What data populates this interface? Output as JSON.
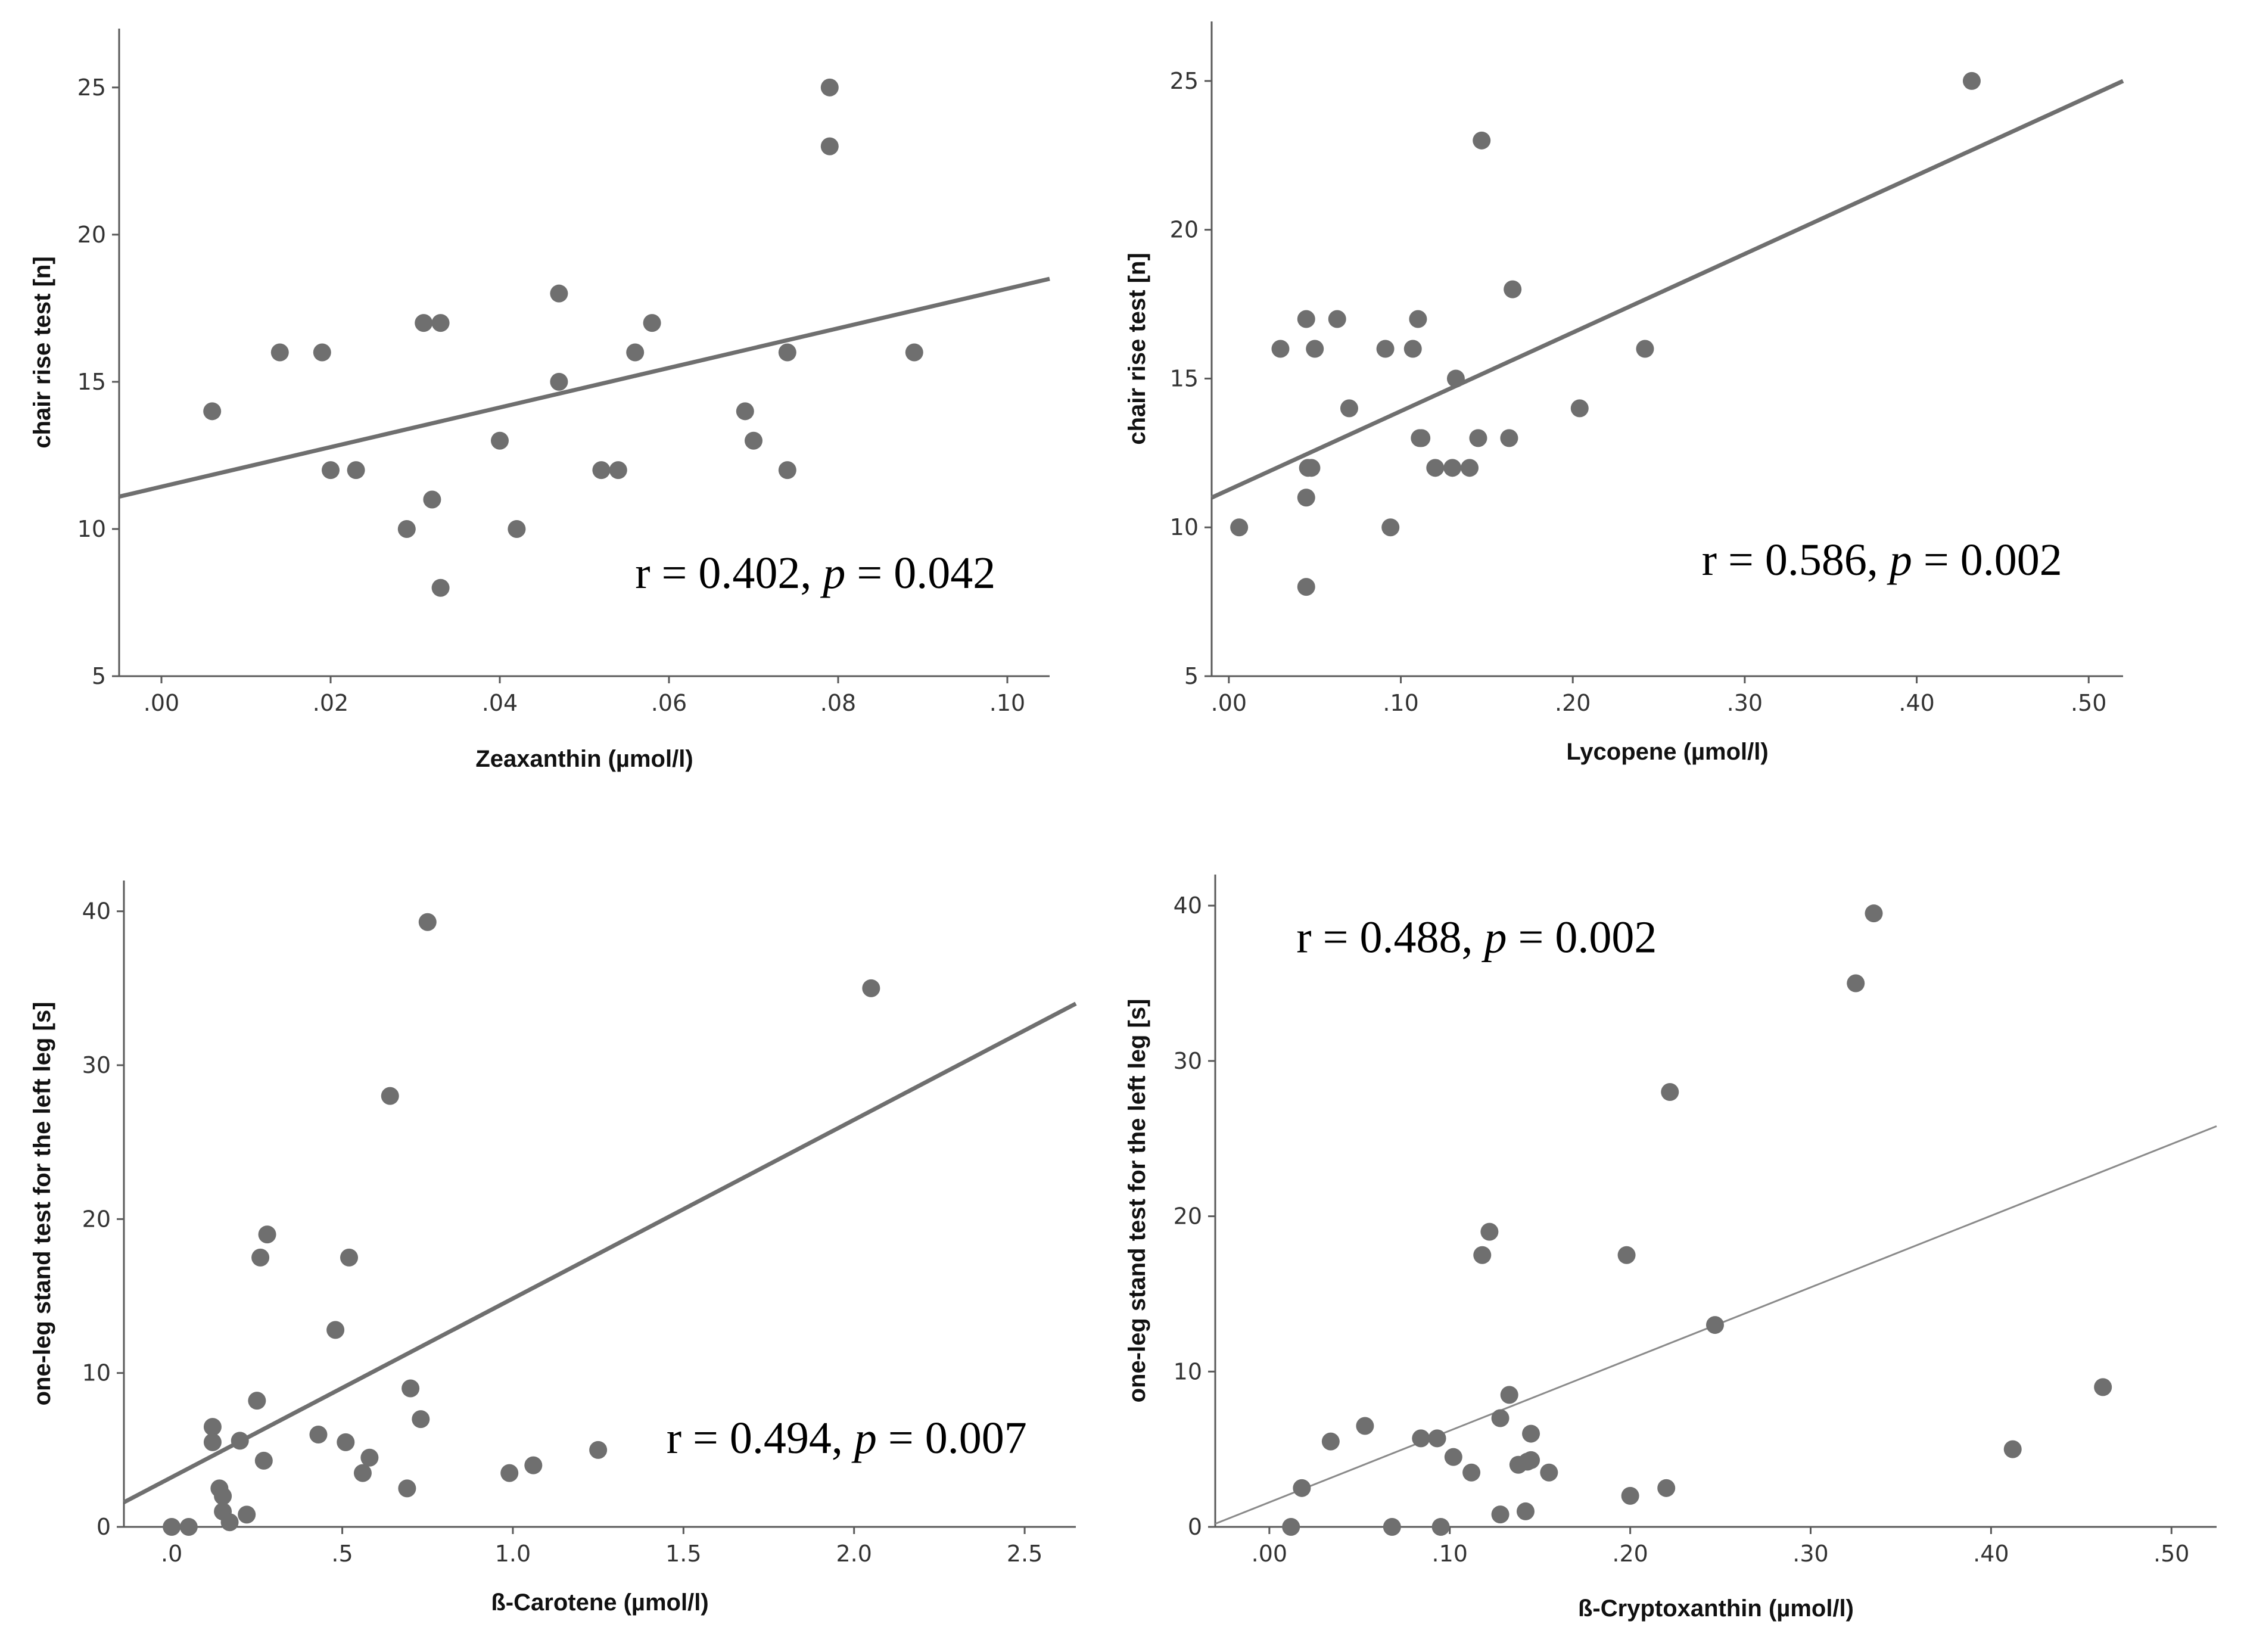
{
  "chart_data": [
    {
      "type": "scatter",
      "xlabel": "Zeaxanthin (µmol/l)",
      "ylabel": "chair rise test [n]",
      "xlim": [
        -0.005,
        0.105
      ],
      "ylim": [
        5,
        27
      ],
      "xticks": [
        0,
        0.02,
        0.04,
        0.06,
        0.08,
        0.1
      ],
      "xtick_labels": [
        ".00",
        ".02",
        ".04",
        ".06",
        ".08",
        ".10"
      ],
      "yticks": [
        5,
        10,
        15,
        20,
        25
      ],
      "ytick_labels": [
        "5",
        "10",
        "15",
        "20",
        "25"
      ],
      "annotation": {
        "prefix": "r = 0.402, ",
        "p_symbol": "p",
        "suffix": " = 0.042",
        "anchor": [
          0.056,
          8.0
        ]
      },
      "fit_line": {
        "x": [
          -0.005,
          0.105
        ],
        "y": [
          11.1,
          18.5
        ],
        "weight": "thick"
      },
      "points": {
        "x": [
          0.006,
          0.014,
          0.019,
          0.02,
          0.023,
          0.029,
          0.031,
          0.032,
          0.033,
          0.033,
          0.04,
          0.042,
          0.047,
          0.047,
          0.052,
          0.054,
          0.056,
          0.058,
          0.069,
          0.07,
          0.074,
          0.074,
          0.079,
          0.079,
          0.089
        ],
        "y": [
          14,
          16,
          16,
          12,
          12,
          10,
          17,
          11,
          17,
          8,
          13,
          10,
          18,
          15,
          12,
          12,
          16,
          17,
          14,
          13,
          16,
          12,
          25,
          23,
          16
        ]
      }
    },
    {
      "type": "scatter",
      "xlabel": "Lycopene (µmol/l)",
      "ylabel": "chair rise test [n]",
      "xlim": [
        -0.01,
        0.52
      ],
      "ylim": [
        5,
        27
      ],
      "xticks": [
        0,
        0.1,
        0.2,
        0.3,
        0.4,
        0.5
      ],
      "xtick_labels": [
        ".00",
        ".10",
        ".20",
        ".30",
        ".40",
        ".50"
      ],
      "yticks": [
        5,
        10,
        15,
        20,
        25
      ],
      "ytick_labels": [
        "5",
        "10",
        "15",
        "20",
        "25"
      ],
      "annotation": {
        "prefix": "r = 0.586, ",
        "p_symbol": "p",
        "suffix": " = 0.002",
        "anchor": [
          0.275,
          8.4
        ]
      },
      "fit_line": {
        "x": [
          -0.01,
          0.52
        ],
        "y": [
          11.0,
          25.0
        ],
        "weight": "thick"
      },
      "points": {
        "x": [
          0.006,
          0.03,
          0.045,
          0.045,
          0.045,
          0.046,
          0.048,
          0.05,
          0.063,
          0.07,
          0.091,
          0.094,
          0.107,
          0.11,
          0.111,
          0.112,
          0.12,
          0.13,
          0.132,
          0.14,
          0.145,
          0.147,
          0.163,
          0.165,
          0.204,
          0.242,
          0.432
        ],
        "y": [
          10,
          16,
          17,
          11,
          8,
          12,
          12,
          16,
          17,
          14,
          16,
          10,
          16,
          17,
          13,
          13,
          12,
          12,
          15,
          12,
          13,
          23,
          13,
          18,
          14,
          16,
          25
        ]
      }
    },
    {
      "type": "scatter",
      "xlabel": "ß-Carotene (µmol/l)",
      "ylabel": "one-leg stand test for the left leg [s]",
      "xlim": [
        -0.14,
        2.65
      ],
      "ylim": [
        0,
        42
      ],
      "xticks": [
        0,
        0.5,
        1.0,
        1.5,
        2.0,
        2.5
      ],
      "xtick_labels": [
        ".0",
        ".5",
        "1.0",
        "1.5",
        "2.0",
        "2.5"
      ],
      "yticks": [
        0,
        10,
        20,
        30,
        40
      ],
      "ytick_labels": [
        "0",
        "10",
        "20",
        "30",
        "40"
      ],
      "annotation": {
        "prefix": "r = 0.494, ",
        "p_symbol": "p",
        "suffix": " = 0.007",
        "anchor": [
          1.45,
          4.8
        ]
      },
      "fit_line": {
        "x": [
          -0.14,
          2.65
        ],
        "y": [
          1.6,
          34.0
        ],
        "weight": "thick"
      },
      "points": {
        "x": [
          0.0,
          0.05,
          0.12,
          0.12,
          0.14,
          0.15,
          0.15,
          0.17,
          0.2,
          0.22,
          0.25,
          0.26,
          0.27,
          0.28,
          0.43,
          0.48,
          0.51,
          0.52,
          0.56,
          0.58,
          0.64,
          0.69,
          0.7,
          0.73,
          0.75,
          0.99,
          1.06,
          1.25,
          2.05
        ],
        "y": [
          0,
          0,
          6.5,
          5.5,
          2.5,
          2.0,
          1.0,
          0.3,
          5.6,
          0.8,
          8.2,
          17.5,
          4.3,
          19.0,
          6.0,
          12.8,
          5.5,
          17.5,
          3.5,
          4.5,
          28.0,
          2.5,
          9.0,
          7.0,
          39.3,
          3.5,
          4.0,
          5.0,
          35.0
        ]
      }
    },
    {
      "type": "scatter",
      "xlabel": "ß-Cryptoxanthin (µmol/l)",
      "ylabel": "one-leg stand test for the left leg [s]",
      "xlim": [
        -0.03,
        0.525
      ],
      "ylim": [
        0,
        42
      ],
      "xticks": [
        0,
        0.1,
        0.2,
        0.3,
        0.4,
        0.5
      ],
      "xtick_labels": [
        ".00",
        ".10",
        ".20",
        ".30",
        ".40",
        ".50"
      ],
      "yticks": [
        0,
        10,
        20,
        30,
        40
      ],
      "ytick_labels": [
        "0",
        "10",
        "20",
        "30",
        "40"
      ],
      "annotation": {
        "prefix": "r = 0.488, ",
        "p_symbol": "p",
        "suffix": " = 0.002",
        "anchor": [
          0.015,
          37.0
        ]
      },
      "fit_line": {
        "x": [
          -0.03,
          0.525
        ],
        "y": [
          0.2,
          25.8
        ],
        "weight": "thin"
      },
      "points": {
        "x": [
          0.012,
          0.018,
          0.034,
          0.053,
          0.068,
          0.084,
          0.093,
          0.095,
          0.102,
          0.112,
          0.118,
          0.122,
          0.128,
          0.128,
          0.133,
          0.138,
          0.142,
          0.143,
          0.145,
          0.145,
          0.155,
          0.198,
          0.2,
          0.22,
          0.222,
          0.247,
          0.325,
          0.335,
          0.412,
          0.462
        ],
        "y": [
          0,
          2.5,
          5.5,
          6.5,
          0,
          5.7,
          5.7,
          0,
          4.5,
          3.5,
          17.5,
          19.0,
          7.0,
          0.8,
          8.5,
          4.0,
          1.0,
          4.2,
          4.3,
          6.0,
          3.5,
          17.5,
          2.0,
          2.5,
          28.0,
          13.0,
          35.0,
          39.5,
          5.0,
          9.0
        ]
      }
    }
  ]
}
